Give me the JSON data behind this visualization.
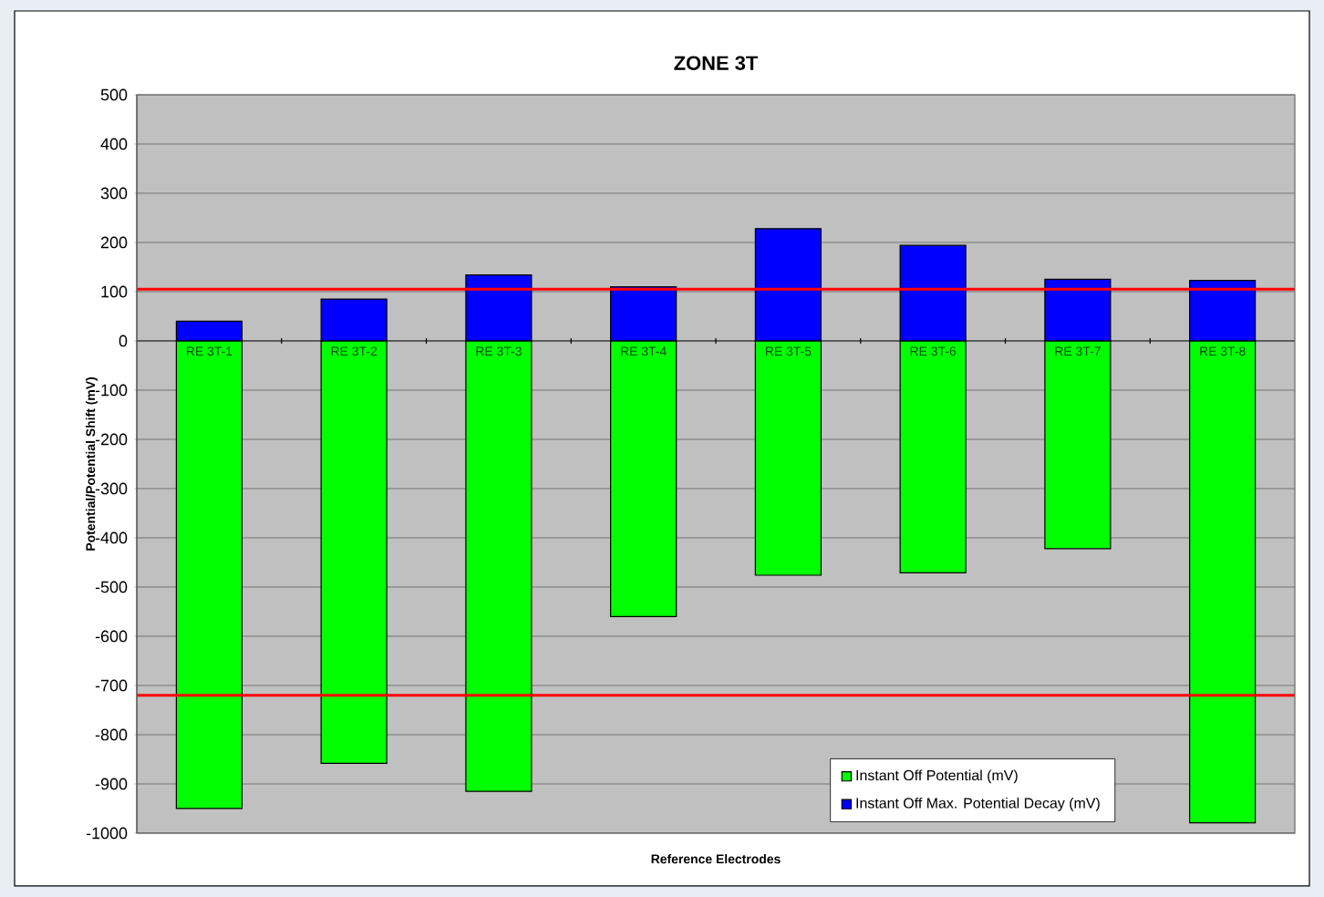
{
  "chart_data": {
    "type": "bar",
    "title": "ZONE 3T",
    "xlabel": "Reference Electrodes",
    "ylabel": "Potential/Potential Shift (mV)",
    "categories": [
      "RE 3T-1",
      "RE 3T-2",
      "RE 3T-3",
      "RE 3T-4",
      "RE 3T-5",
      "RE 3T-6",
      "RE 3T-7",
      "RE 3T-8"
    ],
    "stacked": true,
    "series": [
      {
        "name": "Instant Off  Potential (mV)",
        "color": "#00ff00",
        "values": [
          -950,
          -858,
          -915,
          -560,
          -476,
          -471,
          -422,
          -979
        ]
      },
      {
        "name": "Instant Off  Max. Potential Decay (mV)",
        "color": "#0000ff",
        "values": [
          40,
          85,
          134,
          110,
          228,
          194,
          125,
          123
        ]
      }
    ],
    "ylim": [
      -1000,
      500
    ],
    "yticks": [
      -1000,
      -900,
      -800,
      -700,
      -600,
      -500,
      -400,
      -300,
      -200,
      -100,
      0,
      100,
      200,
      300,
      400,
      500
    ],
    "grid": "y",
    "legend": "bottom right",
    "ref_lines": [
      {
        "axis": "y",
        "value": 105,
        "color": "#ff0000"
      },
      {
        "axis": "y",
        "value": -720,
        "color": "#ff0000"
      }
    ]
  }
}
